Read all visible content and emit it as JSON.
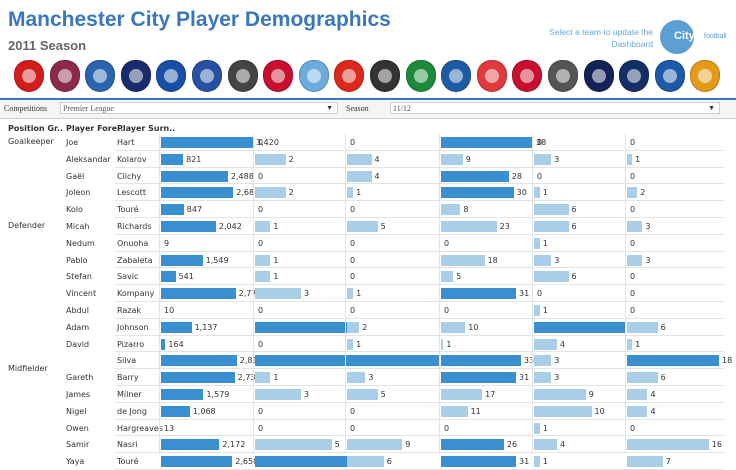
{
  "header": {
    "title": "Manchester City Player Demographics",
    "subtitle": "2011 Season",
    "hint": "Select a team to update the Dashboard",
    "logo_text": "City",
    "logo_subtext": "football"
  },
  "crests": [
    {
      "name": "arsenal-crest-icon",
      "color": "#d31d1d"
    },
    {
      "name": "aston-villa-crest-icon",
      "color": "#8b2a4a"
    },
    {
      "name": "blackburn-crest-icon",
      "color": "#2a65ad"
    },
    {
      "name": "bolton-crest-icon",
      "color": "#1a2b6d"
    },
    {
      "name": "chelsea-crest-icon",
      "color": "#174ea6"
    },
    {
      "name": "everton-crest-icon",
      "color": "#2750a3"
    },
    {
      "name": "fulham-crest-icon",
      "color": "#444444"
    },
    {
      "name": "liverpool-crest-icon",
      "color": "#c8102e"
    },
    {
      "name": "man-city-crest-icon",
      "color": "#6cabdd"
    },
    {
      "name": "man-united-crest-icon",
      "color": "#da291c"
    },
    {
      "name": "newcastle-crest-icon",
      "color": "#333333"
    },
    {
      "name": "norwich-crest-icon",
      "color": "#1e8a3c"
    },
    {
      "name": "qpr-crest-icon",
      "color": "#1d5ba4"
    },
    {
      "name": "stoke-crest-icon",
      "color": "#e03a3e"
    },
    {
      "name": "sunderland-crest-icon",
      "color": "#c8102e"
    },
    {
      "name": "swansea-crest-icon",
      "color": "#555555"
    },
    {
      "name": "tottenham-crest-icon",
      "color": "#132257"
    },
    {
      "name": "west-brom-crest-icon",
      "color": "#122f67"
    },
    {
      "name": "wigan-crest-icon",
      "color": "#1c5aa8"
    },
    {
      "name": "wolves-crest-icon",
      "color": "#e39b1a"
    }
  ],
  "filters": {
    "competitions_label": "Competitions",
    "competitions_value": "Premier League",
    "season_label": "Season",
    "season_value": "11/12"
  },
  "columns": {
    "position": "Position Gr..",
    "forename": "Player Fore..",
    "surname": "Player Surn.."
  },
  "colors": {
    "dark": "#3a8fd1",
    "light": "#a9cfe8"
  },
  "metric_max": [
    3420,
    6,
    15,
    38,
    16,
    18
  ],
  "positions": [
    {
      "label": "Goalkeeper",
      "from": 0,
      "to": 0
    },
    {
      "label": "Defender",
      "from": 1,
      "to": 9
    },
    {
      "label": "Midfielder",
      "from": 10,
      "to": 17
    }
  ],
  "rows": [
    {
      "fore": "Joe",
      "sur": "Hart",
      "values": [
        3420,
        0,
        0,
        38,
        0,
        0
      ]
    },
    {
      "fore": "Aleksandar",
      "sur": "Kolarov",
      "values": [
        821,
        2,
        4,
        9,
        3,
        1
      ]
    },
    {
      "fore": "Gaël",
      "sur": "Clichy",
      "values": [
        2488,
        0,
        4,
        28,
        0,
        0
      ]
    },
    {
      "fore": "Joleon",
      "sur": "Lescott",
      "values": [
        2688,
        2,
        1,
        30,
        1,
        2
      ]
    },
    {
      "fore": "Kolo",
      "sur": "Touré",
      "values": [
        847,
        0,
        0,
        8,
        6,
        0
      ]
    },
    {
      "fore": "Micah",
      "sur": "Richards",
      "values": [
        2042,
        1,
        5,
        23,
        6,
        3
      ]
    },
    {
      "fore": "Nedum",
      "sur": "Onuoha",
      "values": [
        9,
        0,
        0,
        0,
        1,
        0
      ]
    },
    {
      "fore": "Pablo",
      "sur": "Zabaleta",
      "values": [
        1549,
        1,
        0,
        18,
        3,
        3
      ]
    },
    {
      "fore": "Stefan",
      "sur": "Savic",
      "values": [
        541,
        1,
        0,
        5,
        6,
        0
      ]
    },
    {
      "fore": "Vincent",
      "sur": "Kompany",
      "values": [
        2774,
        3,
        1,
        31,
        0,
        0
      ]
    },
    {
      "fore": "Abdul",
      "sur": "Razak",
      "values": [
        10,
        0,
        0,
        0,
        1,
        0
      ]
    },
    {
      "fore": "Adam",
      "sur": "Johnson",
      "values": [
        1137,
        6,
        2,
        10,
        16,
        6
      ]
    },
    {
      "fore": "David",
      "sur": "Pizarro",
      "values": [
        164,
        0,
        1,
        1,
        4,
        1
      ]
    },
    {
      "fore": "",
      "sur": "Silva",
      "values": [
        2817,
        6,
        15,
        33,
        3,
        18
      ]
    },
    {
      "fore": "Gareth",
      "sur": "Barry",
      "values": [
        2739,
        1,
        3,
        31,
        3,
        6
      ]
    },
    {
      "fore": "James",
      "sur": "Milner",
      "values": [
        1579,
        3,
        5,
        17,
        9,
        4
      ]
    },
    {
      "fore": "Nigel",
      "sur": "de Jong",
      "values": [
        1068,
        0,
        0,
        11,
        10,
        4
      ]
    },
    {
      "fore": "Owen",
      "sur": "Hargreaves",
      "values": [
        13,
        0,
        0,
        0,
        1,
        0
      ]
    },
    {
      "fore": "Samir",
      "sur": "Nasri",
      "values": [
        2172,
        5,
        9,
        26,
        4,
        16
      ]
    },
    {
      "fore": "Yaya",
      "sur": "Touré",
      "values": [
        2650,
        6,
        6,
        31,
        1,
        7
      ]
    }
  ]
}
